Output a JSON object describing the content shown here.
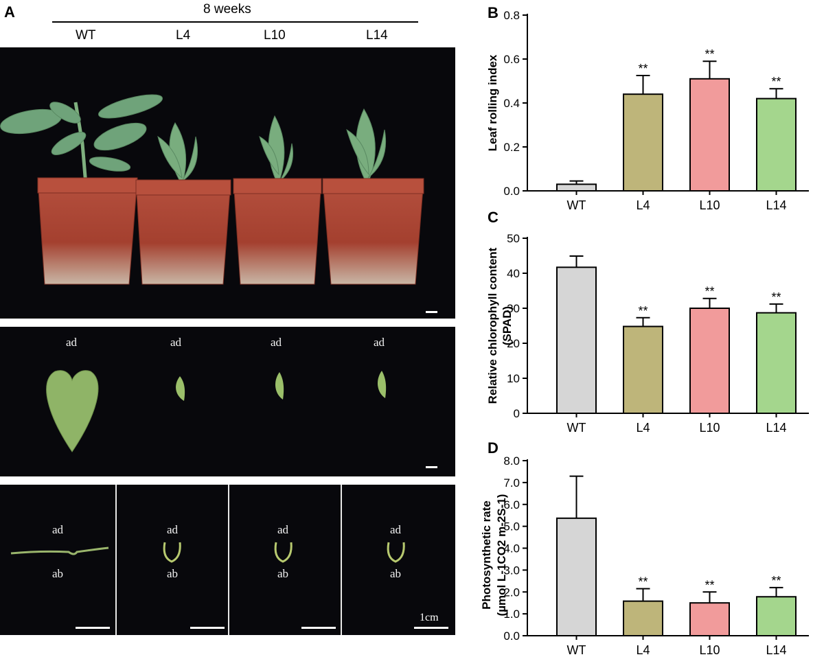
{
  "panel_a": {
    "label": "A",
    "header": "8 weeks",
    "columns": [
      "WT",
      "L4",
      "L10",
      "L14"
    ],
    "leaf_label_ad": "ad",
    "leaf_label_ab": "ab",
    "scale_label": "1cm"
  },
  "chart_data": [
    {
      "panel": "B",
      "type": "bar",
      "categories": [
        "WT",
        "L4",
        "L10",
        "L14"
      ],
      "values": [
        0.03,
        0.44,
        0.51,
        0.42
      ],
      "errors": [
        0.015,
        0.085,
        0.08,
        0.045
      ],
      "significance": [
        "",
        "**",
        "**",
        "**"
      ],
      "ylabel": "Leaf rolling index",
      "ylim": [
        0,
        0.8
      ],
      "yticks": [
        0.0,
        0.2,
        0.4,
        0.6,
        0.8
      ],
      "ytick_labels": [
        "0.0",
        "0.2",
        "0.4",
        "0.6",
        "0.8"
      ],
      "colors": [
        "#d6d6d6",
        "#beb57a",
        "#f19b9b",
        "#a4d68d"
      ]
    },
    {
      "panel": "C",
      "type": "bar",
      "categories": [
        "WT",
        "L4",
        "L10",
        "L14"
      ],
      "values": [
        41.7,
        24.8,
        30.0,
        28.7
      ],
      "errors": [
        3.2,
        2.5,
        2.8,
        2.5
      ],
      "significance": [
        "",
        "**",
        "**",
        "**"
      ],
      "ylabel": "Relative chlorophyll content",
      "ylabel2": "(SPAD)",
      "ylim": [
        0,
        50
      ],
      "yticks": [
        0,
        10,
        20,
        30,
        40,
        50
      ],
      "ytick_labels": [
        "0",
        "10",
        "20",
        "30",
        "40",
        "50"
      ],
      "colors": [
        "#d6d6d6",
        "#beb57a",
        "#f19b9b",
        "#a4d68d"
      ]
    },
    {
      "panel": "D",
      "type": "bar",
      "categories": [
        "WT",
        "L4",
        "L10",
        "L14"
      ],
      "values": [
        5.37,
        1.58,
        1.5,
        1.78
      ],
      "errors": [
        1.92,
        0.57,
        0.5,
        0.42
      ],
      "significance": [
        "",
        "**",
        "**",
        "**"
      ],
      "ylabel": "Photosynthetic rate",
      "ylabel2": "(µmol L-1CO2 m-2S-1)",
      "ylim": [
        0,
        8
      ],
      "yticks": [
        0,
        1,
        2,
        3,
        4,
        5,
        6,
        7,
        8
      ],
      "ytick_labels": [
        "0.0",
        "1.0",
        "2.0",
        "3.0",
        "4.0",
        "5.0",
        "6.0",
        "7.0",
        "8.0"
      ],
      "colors": [
        "#d6d6d6",
        "#beb57a",
        "#f19b9b",
        "#a4d68d"
      ]
    }
  ]
}
